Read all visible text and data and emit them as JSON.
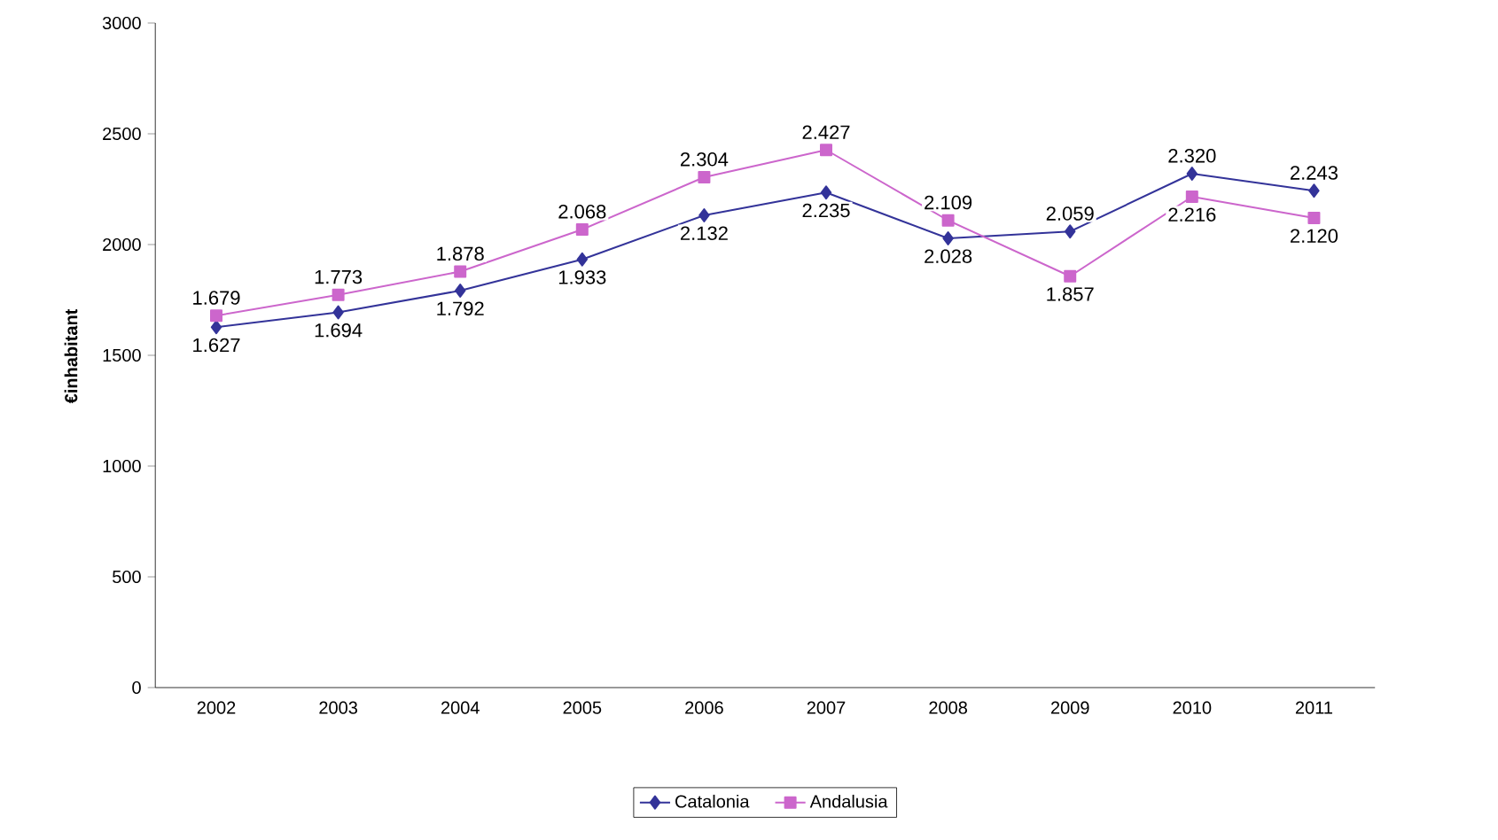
{
  "chart_data": {
    "type": "line",
    "ylabel": "€inhabitant",
    "categories": [
      "2002",
      "2003",
      "2004",
      "2005",
      "2006",
      "2007",
      "2008",
      "2009",
      "2010",
      "2011"
    ],
    "series": [
      {
        "name": "Catalonia",
        "color": "#333399",
        "marker": "diamond",
        "values": [
          1627,
          1694,
          1792,
          1933,
          2132,
          2235,
          2028,
          2059,
          2320,
          2243
        ],
        "value_labels": [
          "1.627",
          "1.694",
          "1.792",
          "1.933",
          "2.132",
          "2.235",
          "2.028",
          "2.059",
          "2.320",
          "2.243"
        ]
      },
      {
        "name": "Andalusia",
        "color": "#cc66cc",
        "marker": "square",
        "values": [
          1679,
          1773,
          1878,
          2068,
          2304,
          2427,
          2109,
          1857,
          2216,
          2120
        ],
        "value_labels": [
          "1.679",
          "1.773",
          "1.878",
          "2.068",
          "2.304",
          "2.427",
          "2.109",
          "1.857",
          "2.216",
          "2.120"
        ]
      }
    ],
    "ylim": [
      0,
      3000
    ],
    "yticks": [
      0,
      500,
      1000,
      1500,
      2000,
      2500,
      3000
    ],
    "grid": false,
    "legend": "bottom",
    "line_style": "solid"
  }
}
